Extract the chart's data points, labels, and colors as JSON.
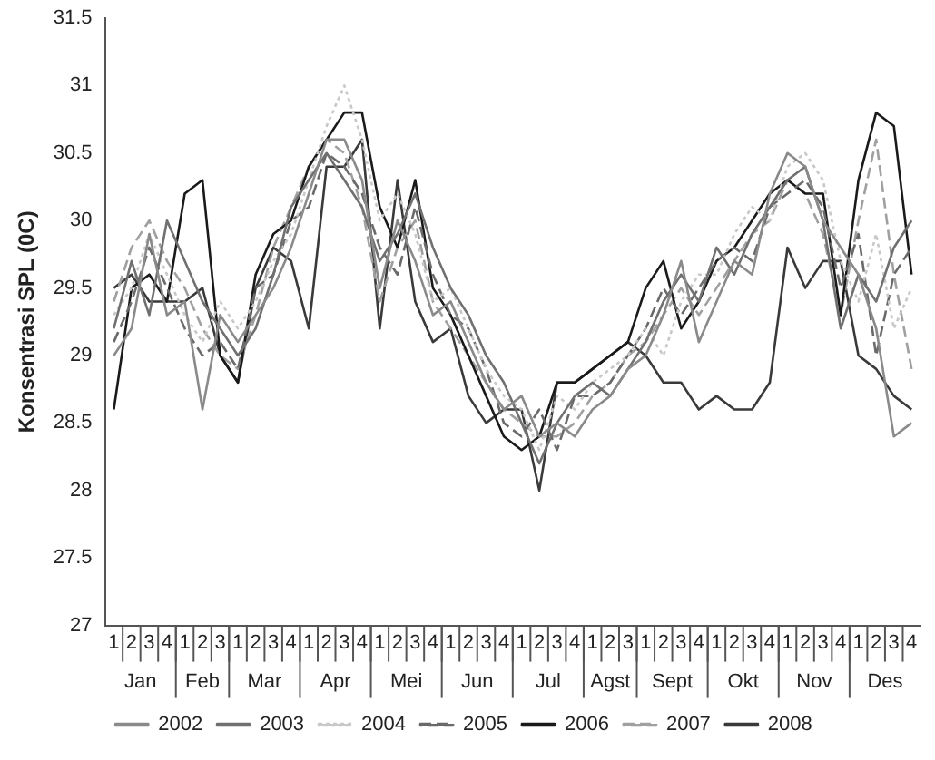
{
  "chart_data": {
    "type": "line",
    "ylabel": "Konsentrasi SPL (0C)",
    "categories": [
      "1",
      "2",
      "3",
      "4",
      "1",
      "2",
      "3",
      "1",
      "2",
      "3",
      "4",
      "1",
      "2",
      "3",
      "4",
      "1",
      "2",
      "3",
      "4",
      "1",
      "2",
      "3",
      "4",
      "1",
      "2",
      "3",
      "4",
      "1",
      "2",
      "3",
      "1",
      "2",
      "3",
      "4",
      "1",
      "2",
      "3",
      "4",
      "1",
      "2",
      "3",
      "4",
      "1",
      "2",
      "3",
      "4"
    ],
    "annotations": [
      "Jan",
      "Feb",
      "Mar",
      "Apr",
      "Mei",
      "Jun",
      "Jul",
      "Agst",
      "Sept",
      "Okt",
      "Nov",
      "Des"
    ],
    "ylim": [
      27,
      31.5
    ],
    "yticks": [
      27,
      27.5,
      28,
      28.5,
      29,
      29.5,
      30,
      30.5,
      31,
      31.5
    ],
    "grid": false,
    "legend": "bottom",
    "marker": "none",
    "series": [
      {
        "name": "2002",
        "color": "#8a8a8a",
        "line_style": "solid",
        "values": [
          29.0,
          29.2,
          29.9,
          29.3,
          29.4,
          28.6,
          29.3,
          29.1,
          29.3,
          29.5,
          29.8,
          30.2,
          30.6,
          30.6,
          30.3,
          29.5,
          30.0,
          29.7,
          29.3,
          29.4,
          29.1,
          28.8,
          28.6,
          28.7,
          28.4,
          28.5,
          28.4,
          28.6,
          28.7,
          28.9,
          29.0,
          29.3,
          29.7,
          29.1,
          29.4,
          29.7,
          29.6,
          30.2,
          30.5,
          30.4,
          30.0,
          29.8,
          29.6,
          29.2,
          28.4,
          28.5
        ]
      },
      {
        "name": "2003",
        "color": "#707070",
        "line_style": "solid",
        "values": [
          29.2,
          29.7,
          29.3,
          30.0,
          29.7,
          29.4,
          29.2,
          29.0,
          29.2,
          29.6,
          30.1,
          30.3,
          30.5,
          30.3,
          30.1,
          29.7,
          29.9,
          30.2,
          29.8,
          29.5,
          29.3,
          29.0,
          28.8,
          28.5,
          28.2,
          28.5,
          28.7,
          28.8,
          28.7,
          28.9,
          29.1,
          29.4,
          29.6,
          29.4,
          29.8,
          29.6,
          29.9,
          30.1,
          30.3,
          30.4,
          30.0,
          29.2,
          29.6,
          29.4,
          29.8,
          30.0
        ]
      },
      {
        "name": "2004",
        "color": "#c8c8c8",
        "line_style": "dotted",
        "values": [
          29.3,
          29.5,
          29.9,
          29.6,
          29.3,
          29.1,
          29.4,
          29.2,
          29.4,
          29.7,
          29.9,
          30.3,
          30.7,
          31.0,
          30.6,
          30.0,
          30.2,
          29.9,
          29.4,
          29.5,
          29.2,
          28.9,
          28.7,
          28.6,
          28.3,
          28.7,
          28.6,
          28.8,
          28.9,
          29.0,
          29.2,
          29.0,
          29.4,
          29.6,
          29.6,
          29.9,
          30.1,
          30.0,
          30.4,
          30.5,
          30.3,
          29.7,
          29.4,
          29.9,
          29.2,
          29.5
        ]
      },
      {
        "name": "2005",
        "color": "#6a6a6a",
        "line_style": "dashed",
        "values": [
          29.1,
          29.4,
          29.8,
          29.5,
          29.2,
          29.0,
          29.1,
          28.9,
          29.5,
          29.6,
          30.0,
          30.1,
          30.5,
          30.4,
          30.2,
          29.8,
          29.6,
          30.1,
          29.6,
          29.3,
          29.2,
          28.9,
          28.5,
          28.4,
          28.6,
          28.3,
          28.7,
          28.7,
          28.8,
          29.0,
          29.2,
          29.5,
          29.3,
          29.5,
          29.7,
          29.8,
          29.7,
          30.1,
          30.2,
          30.3,
          30.1,
          29.5,
          29.9,
          29.0,
          29.6,
          29.8
        ]
      },
      {
        "name": "2006",
        "color": "#1a1a1a",
        "line_style": "solid",
        "values": [
          28.6,
          29.5,
          29.6,
          29.4,
          30.2,
          30.3,
          29.0,
          28.8,
          29.6,
          29.9,
          30.0,
          30.4,
          30.6,
          30.8,
          30.8,
          30.1,
          29.8,
          30.3,
          29.5,
          29.3,
          29.0,
          28.7,
          28.4,
          28.3,
          28.4,
          28.8,
          28.8,
          28.9,
          29.0,
          29.1,
          29.5,
          29.7,
          29.2,
          29.4,
          29.7,
          29.8,
          30.0,
          30.2,
          30.3,
          30.2,
          30.2,
          29.3,
          30.3,
          30.8,
          30.7,
          29.6
        ]
      },
      {
        "name": "2007",
        "color": "#a0a0a0",
        "line_style": "dashed",
        "values": [
          29.4,
          29.8,
          30.0,
          29.7,
          29.5,
          29.2,
          29.0,
          28.9,
          29.3,
          29.8,
          30.1,
          30.4,
          30.6,
          30.5,
          30.1,
          29.4,
          29.8,
          30.0,
          29.4,
          29.2,
          29.0,
          28.8,
          28.6,
          28.5,
          28.4,
          28.4,
          28.5,
          28.7,
          28.8,
          29.0,
          29.1,
          29.3,
          29.5,
          29.3,
          29.5,
          29.7,
          29.9,
          30.0,
          30.3,
          30.2,
          29.9,
          29.3,
          30.0,
          30.6,
          29.6,
          28.9
        ]
      },
      {
        "name": "2008",
        "color": "#3a3a3a",
        "line_style": "solid",
        "values": [
          29.5,
          29.6,
          29.4,
          29.4,
          29.4,
          29.5,
          29.0,
          28.8,
          29.5,
          29.8,
          29.7,
          29.2,
          30.4,
          30.4,
          30.6,
          29.2,
          30.3,
          29.4,
          29.1,
          29.2,
          28.7,
          28.5,
          28.6,
          28.6,
          28.0,
          28.8,
          28.8,
          28.9,
          29.0,
          29.1,
          29.0,
          28.8,
          28.8,
          28.6,
          28.7,
          28.6,
          28.6,
          28.8,
          29.8,
          29.5,
          29.7,
          29.7,
          29.0,
          28.9,
          28.7,
          28.6
        ]
      }
    ]
  }
}
